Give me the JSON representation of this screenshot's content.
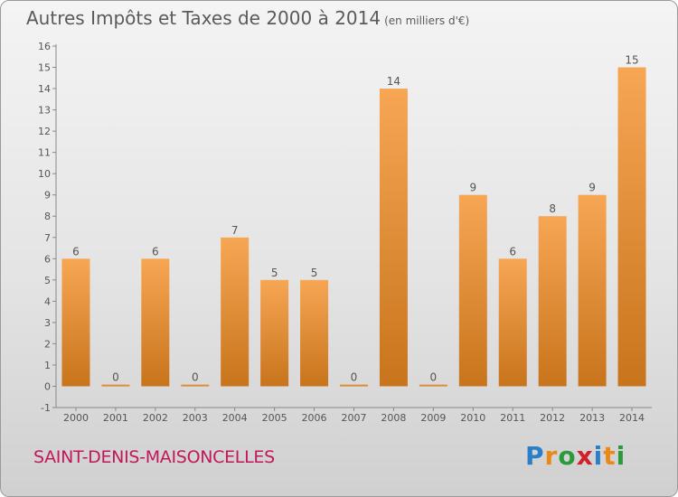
{
  "title": "Autres Impôts et Taxes de 2000 à 2014",
  "unit": "(en milliers d'€)",
  "city": "SAINT-DENIS-MAISONCELLES",
  "logo": {
    "letters": [
      "P",
      "r",
      "o",
      "x",
      "i",
      "t",
      "i"
    ],
    "colors": [
      "#2a7fc9",
      "#e8891a",
      "#2a9a3a",
      "#d0202a",
      "#2a7fc9",
      "#e8891a",
      "#2a9a3a"
    ]
  },
  "colors": {
    "bar_light": "#f7a654",
    "bar_dark": "#c8741c",
    "city": "#c2185b"
  },
  "chart_data": {
    "type": "bar",
    "categories": [
      "2000",
      "2001",
      "2002",
      "2003",
      "2004",
      "2005",
      "2006",
      "2007",
      "2008",
      "2009",
      "2010",
      "2011",
      "2012",
      "2013",
      "2014"
    ],
    "values": [
      6,
      0,
      6,
      0,
      7,
      5,
      5,
      0,
      14,
      0,
      9,
      6,
      8,
      9,
      15
    ],
    "data_labels": [
      "6",
      "0",
      "6",
      "0",
      "7",
      "5",
      "5",
      "0",
      "14",
      "0",
      "9",
      "6",
      "8",
      "9",
      "15"
    ],
    "yticks": [
      -1,
      0,
      1,
      2,
      3,
      4,
      5,
      6,
      7,
      8,
      9,
      10,
      11,
      12,
      13,
      14,
      15,
      16
    ],
    "ylim": [
      -1,
      16
    ],
    "grid": false
  }
}
